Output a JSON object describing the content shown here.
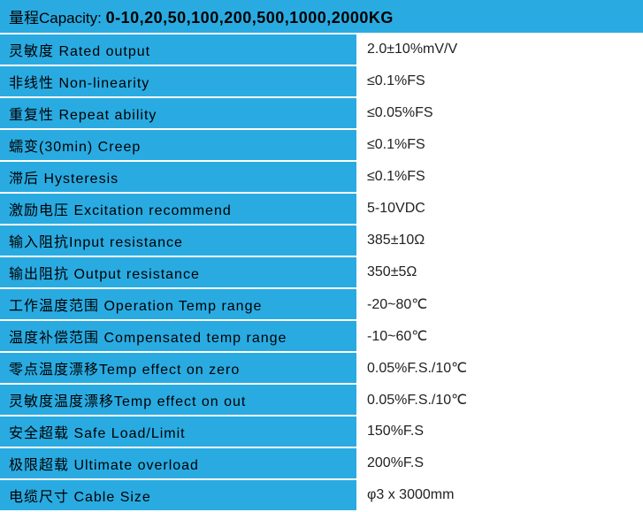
{
  "header": {
    "label": "量程Capacity: ",
    "value": "0-10,20,50,100,200,500,1000,2000KG"
  },
  "rows": [
    {
      "label": "灵敏度 Rated output",
      "value": "2.0±10%mV/V"
    },
    {
      "label": "非线性 Non-linearity",
      "value": "≤0.1%FS"
    },
    {
      "label": "重复性 Repeat ability",
      "value": "≤0.05%FS"
    },
    {
      "label": "蠕变(30min) Creep",
      "value": "≤0.1%FS"
    },
    {
      "label": "滞后 Hysteresis",
      "value": "≤0.1%FS"
    },
    {
      "label": "激励电压 Excitation recommend",
      "value": "5-10VDC"
    },
    {
      "label": "输入阻抗Input resistance",
      "value": "385±10Ω"
    },
    {
      "label": "输出阻抗 Output resistance",
      "value": "350±5Ω"
    },
    {
      "label": "工作温度范围 Operation Temp range",
      "value": "-20~80℃"
    },
    {
      "label": "温度补偿范围 Compensated temp range",
      "value": "-10~60℃"
    },
    {
      "label": "零点温度漂移Temp effect on zero",
      "value": "0.05%F.S./10℃"
    },
    {
      "label": "灵敏度温度漂移Temp effect on out",
      "value": "0.05%F.S./10℃"
    },
    {
      "label": "安全超载 Safe Load/Limit",
      "value": "150%F.S"
    },
    {
      "label": "极限超载 Ultimate overload",
      "value": "200%F.S"
    },
    {
      "label": "电缆尺寸 Cable Size",
      "value": "φ3 x 3000mm"
    }
  ],
  "styling": {
    "label_bg_color": "#29abe2",
    "value_bg_color": "#ffffff",
    "border_color": "#ffffff",
    "text_color": "#000000",
    "font_size": 16,
    "header_font_size": 18,
    "label_column_width": 405,
    "total_width": 727,
    "row_border_width": 2
  }
}
